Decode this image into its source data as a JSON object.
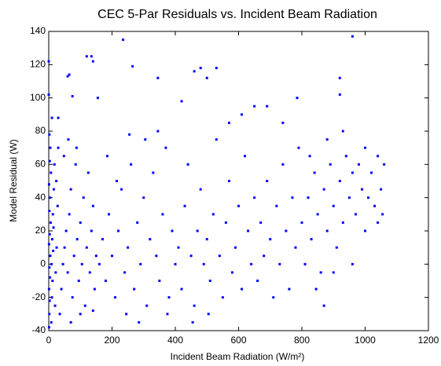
{
  "chart_data": {
    "type": "scatter",
    "title": "CEC 5-Par Residuals vs. Incident Beam Radiation",
    "xlabel": "Incident Beam Radiation (W/m²)",
    "ylabel": "Model Residual (W)",
    "color": "#0000ff",
    "xlim": [
      0,
      1200
    ],
    "xticks": [
      0,
      200,
      400,
      600,
      800,
      1000,
      1200
    ],
    "ylim": [
      -40,
      140
    ],
    "yticks": [
      -40,
      -20,
      0,
      20,
      40,
      60,
      80,
      100,
      120,
      140
    ],
    "x": [
      1,
      2,
      3,
      1,
      4,
      2,
      5,
      1,
      3,
      6,
      2,
      4,
      1,
      7,
      3,
      5,
      2,
      8,
      10,
      12,
      9,
      14,
      11,
      15,
      13,
      16,
      18,
      20,
      22,
      25,
      28,
      24,
      30,
      35,
      40,
      45,
      50,
      55,
      60,
      65,
      70,
      75,
      80,
      85,
      90,
      95,
      100,
      105,
      110,
      115,
      120,
      125,
      130,
      135,
      140,
      145,
      150,
      48,
      62,
      88,
      70,
      100,
      140,
      160,
      170,
      180,
      190,
      200,
      210,
      220,
      230,
      240,
      250,
      260,
      270,
      280,
      290,
      300,
      310,
      320,
      330,
      340,
      350,
      360,
      370,
      380,
      390,
      400,
      185,
      215,
      255,
      305,
      345,
      375,
      285,
      245,
      410,
      420,
      430,
      440,
      450,
      460,
      470,
      480,
      490,
      500,
      510,
      520,
      530,
      540,
      550,
      560,
      570,
      580,
      590,
      600,
      610,
      620,
      630,
      640,
      650,
      455,
      505,
      570,
      610,
      650,
      660,
      670,
      680,
      690,
      700,
      710,
      720,
      730,
      740,
      750,
      760,
      770,
      780,
      790,
      800,
      690,
      740,
      810,
      820,
      830,
      840,
      850,
      860,
      870,
      880,
      890,
      900,
      910,
      920,
      930,
      940,
      950,
      960,
      970,
      980,
      990,
      1000,
      1010,
      1020,
      1030,
      1040,
      1050,
      1060,
      870,
      845,
      900,
      960,
      1000,
      1040,
      880,
      930,
      825,
      1055,
      0,
      0,
      60,
      65,
      120,
      135,
      140,
      235,
      265,
      345,
      460,
      480,
      530,
      500,
      420,
      960,
      920,
      920,
      785,
      30,
      10,
      75,
      155
    ],
    "y": [
      -38,
      -30,
      -22,
      -15,
      -8,
      -2,
      5,
      12,
      18,
      25,
      32,
      40,
      48,
      55,
      62,
      70,
      78,
      -35,
      -20,
      -10,
      0,
      8,
      15,
      22,
      30,
      45,
      60,
      -25,
      -5,
      10,
      35,
      50,
      70,
      -30,
      -15,
      0,
      10,
      20,
      -5,
      30,
      45,
      -20,
      5,
      60,
      15,
      -10,
      25,
      0,
      40,
      -25,
      10,
      55,
      -5,
      20,
      35,
      -15,
      5,
      65,
      75,
      70,
      -35,
      -30,
      -28,
      0,
      15,
      -10,
      30,
      5,
      -20,
      20,
      45,
      -5,
      10,
      60,
      -15,
      25,
      0,
      40,
      -25,
      15,
      55,
      5,
      -10,
      30,
      70,
      -20,
      20,
      0,
      65,
      50,
      78,
      75,
      80,
      -30,
      -35,
      -30,
      10,
      -15,
      35,
      60,
      5,
      -25,
      20,
      45,
      0,
      15,
      -10,
      30,
      75,
      5,
      -20,
      25,
      50,
      -5,
      10,
      35,
      -15,
      65,
      20,
      0,
      40,
      -35,
      -30,
      85,
      90,
      95,
      -10,
      25,
      5,
      50,
      15,
      -20,
      35,
      0,
      60,
      20,
      -15,
      40,
      10,
      70,
      25,
      95,
      85,
      0,
      40,
      15,
      55,
      30,
      -5,
      45,
      20,
      60,
      35,
      10,
      50,
      25,
      65,
      40,
      55,
      30,
      60,
      45,
      70,
      40,
      55,
      35,
      65,
      45,
      60,
      -25,
      -15,
      -5,
      0,
      20,
      25,
      75,
      80,
      65,
      30,
      122,
      102,
      113,
      114,
      125,
      125,
      122,
      135,
      119,
      112,
      116,
      118,
      118,
      112,
      98,
      137,
      102,
      112,
      100,
      88,
      88,
      101,
      100
    ]
  }
}
